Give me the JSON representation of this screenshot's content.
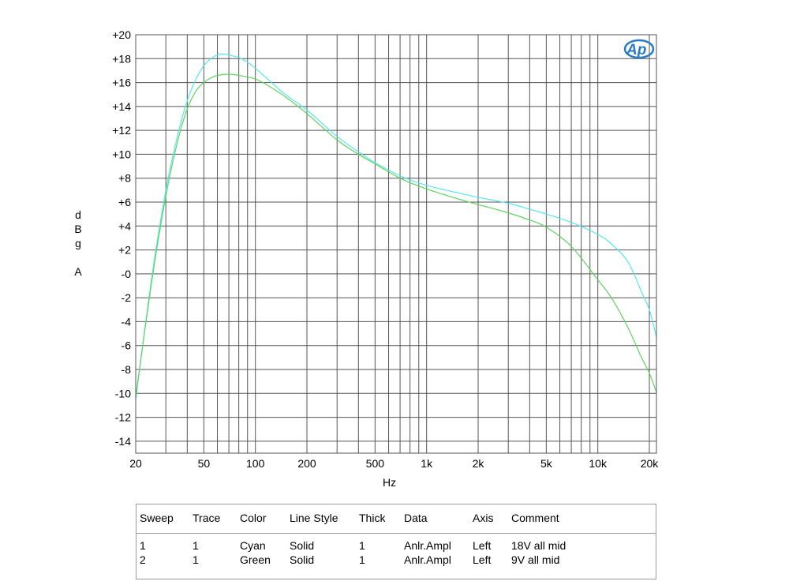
{
  "chart_data": {
    "type": "line",
    "xlabel": "Hz",
    "ylabel": [
      "d",
      "B",
      "g",
      "A"
    ],
    "x_scale": "log",
    "xlim": [
      20,
      22000
    ],
    "ylim": [
      -15,
      20
    ],
    "x_ticks": [
      20,
      50,
      100,
      200,
      500,
      1000,
      2000,
      5000,
      10000,
      20000
    ],
    "x_tick_labels": [
      "20",
      "50",
      "100",
      "200",
      "500",
      "1k",
      "2k",
      "5k",
      "10k",
      "20k"
    ],
    "y_ticks": [
      20,
      18,
      16,
      14,
      12,
      10,
      8,
      6,
      4,
      2,
      0,
      -2,
      -4,
      -6,
      -8,
      -10,
      -12,
      -14
    ],
    "y_tick_labels": [
      "+20",
      "+18",
      "+16",
      "+14",
      "+12",
      "+10",
      "+8",
      "+6",
      "+4",
      "+2",
      "-0",
      "-2",
      "-4",
      "-6",
      "-8",
      "-10",
      "-12",
      "-14"
    ],
    "grid": true,
    "series": [
      {
        "color": "#55e6f0",
        "points": [
          [
            20,
            -10.5
          ],
          [
            25,
            0
          ],
          [
            30,
            7
          ],
          [
            35,
            11.5
          ],
          [
            40,
            14.5
          ],
          [
            45,
            16.3
          ],
          [
            50,
            17.4
          ],
          [
            55,
            18.0
          ],
          [
            60,
            18.3
          ],
          [
            65,
            18.4
          ],
          [
            70,
            18.3
          ],
          [
            80,
            18.1
          ],
          [
            90,
            17.7
          ],
          [
            100,
            17.2
          ],
          [
            120,
            16.2
          ],
          [
            150,
            15.0
          ],
          [
            200,
            13.7
          ],
          [
            300,
            11.5
          ],
          [
            400,
            10.2
          ],
          [
            500,
            9.3
          ],
          [
            700,
            8.2
          ],
          [
            1000,
            7.4
          ],
          [
            1500,
            6.8
          ],
          [
            2000,
            6.4
          ],
          [
            3000,
            5.9
          ],
          [
            4000,
            5.4
          ],
          [
            5000,
            5.0
          ],
          [
            7000,
            4.3
          ],
          [
            10000,
            3.3
          ],
          [
            12000,
            2.5
          ],
          [
            15000,
            1.0
          ],
          [
            18000,
            -1.5
          ],
          [
            20000,
            -3.0
          ],
          [
            22000,
            -5.3
          ]
        ]
      },
      {
        "color": "#5fd35f",
        "points": [
          [
            20,
            -10.3
          ],
          [
            25,
            -0.3
          ],
          [
            30,
            6.5
          ],
          [
            35,
            11.0
          ],
          [
            40,
            13.8
          ],
          [
            45,
            15.3
          ],
          [
            50,
            16.0
          ],
          [
            55,
            16.4
          ],
          [
            60,
            16.6
          ],
          [
            70,
            16.7
          ],
          [
            80,
            16.6
          ],
          [
            100,
            16.3
          ],
          [
            120,
            15.7
          ],
          [
            150,
            14.8
          ],
          [
            200,
            13.4
          ],
          [
            300,
            11.2
          ],
          [
            400,
            10.0
          ],
          [
            500,
            9.2
          ],
          [
            700,
            8.0
          ],
          [
            1000,
            7.1
          ],
          [
            1500,
            6.3
          ],
          [
            2000,
            5.8
          ],
          [
            3000,
            5.1
          ],
          [
            4000,
            4.5
          ],
          [
            5000,
            3.9
          ],
          [
            7000,
            2.3
          ],
          [
            10000,
            -0.5
          ],
          [
            12000,
            -2.0
          ],
          [
            15000,
            -4.5
          ],
          [
            18000,
            -7.0
          ],
          [
            20000,
            -8.3
          ],
          [
            22000,
            -9.9
          ]
        ]
      }
    ],
    "legend_table": {
      "headers": [
        "Sweep",
        "Trace",
        "Color",
        "Line Style",
        "Thick",
        "Data",
        "Axis",
        "Comment"
      ],
      "rows": [
        [
          "1",
          "1",
          "Cyan",
          "Solid",
          "1",
          "Anlr.Ampl",
          "Left",
          "18V all mid"
        ],
        [
          "2",
          "1",
          "Green",
          "Solid",
          "1",
          "Anlr.Ampl",
          "Left",
          "9V all mid"
        ]
      ]
    }
  },
  "logo": {
    "text": "AP",
    "color": "#2a7bc4"
  }
}
